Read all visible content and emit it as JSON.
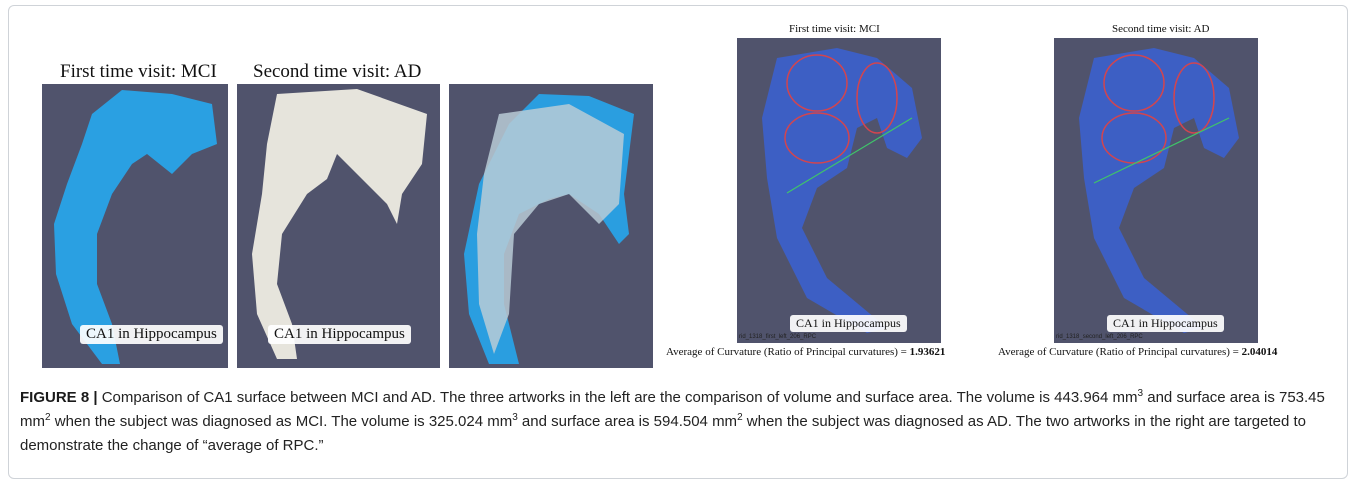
{
  "figure": {
    "left_panels": {
      "titles": [
        "First time visit: MCI",
        "Second time visit: AD"
      ],
      "labels": [
        "CA1 in Hippocampus",
        "CA1 in Hippocampus"
      ]
    },
    "right_panels": [
      {
        "title": "First time visit: MCI",
        "label": "CA1 in Hippocampus",
        "file": "rid_1318_first_left_206_RPC",
        "metric_text": "Average of Curvature (Ratio of Principal curvatures) = ",
        "metric_value": "1.93621"
      },
      {
        "title": "Second time visit: AD",
        "label": "CA1 in Hippocampus",
        "file": "rid_1318_second_left_206_RPC",
        "metric_text": "Average of Curvature (Ratio of Principal curvatures) = ",
        "metric_value": "2.04014"
      }
    ],
    "caption": {
      "label": "FIGURE 8 |",
      "segments": [
        " Comparison of CA1 surface between MCI and AD. The three artworks in the left are the comparison of volume and surface area. The volume is 443.964 mm",
        "3",
        " and surface area is 753.45 mm",
        "2",
        " when the subject was diagnosed as MCI. The volume is 325.024 mm",
        "3",
        " and surface area is 594.504 mm",
        "2",
        " when the subject was diagnosed as AD. The two artworks in the right are targeted to demonstrate the change of “average of RPC.”"
      ]
    }
  }
}
